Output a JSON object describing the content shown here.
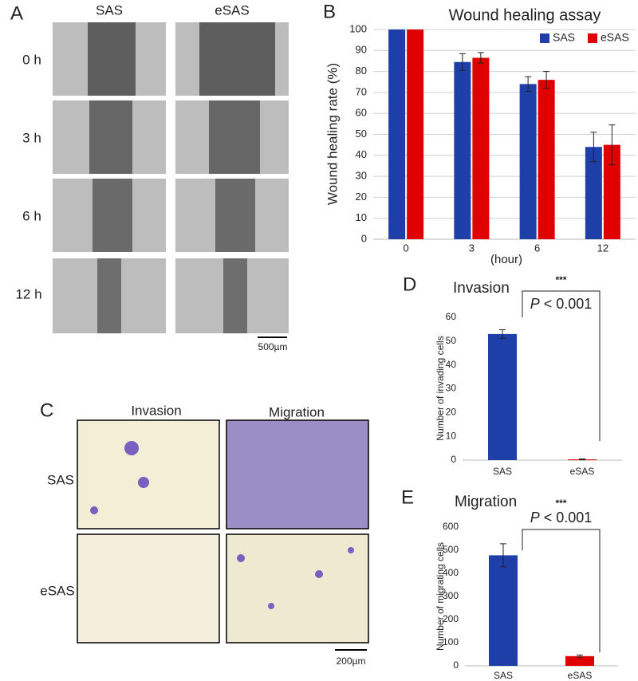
{
  "panel_a": {
    "label": "A",
    "columns": [
      "SAS",
      "eSAS"
    ],
    "rows": [
      "0 h",
      "3 h",
      "6 h",
      "12 h"
    ],
    "scale_bar": "500µm"
  },
  "panel_c": {
    "label": "C",
    "columns": [
      "Invasion",
      "Migration"
    ],
    "rows": [
      "SAS",
      "eSAS"
    ],
    "scale_bar": "200µm"
  },
  "chart_data": [
    {
      "type": "bar",
      "panel_label": "B",
      "title": "Wound healing assay",
      "x_label": "(hour)",
      "y_label": "Wound healing rate (%)",
      "categories": [
        "0",
        "3",
        "6",
        "12"
      ],
      "series": [
        {
          "name": "SAS",
          "color": "#1f3fa8",
          "values": [
            100,
            84.5,
            74,
            44
          ],
          "errors": [
            0,
            4,
            3.5,
            7
          ]
        },
        {
          "name": "eSAS",
          "color": "#e00000",
          "values": [
            100,
            86.5,
            76,
            45
          ],
          "errors": [
            0,
            2.5,
            4,
            9.5
          ]
        }
      ],
      "ylim": [
        0,
        100
      ],
      "yticks": [
        0,
        10,
        20,
        30,
        40,
        50,
        60,
        70,
        80,
        90,
        100
      ],
      "grid": true,
      "legend": "upper right"
    },
    {
      "type": "bar",
      "panel_label": "D",
      "title": "Invasion",
      "y_label": "Number of invading cells",
      "categories": [
        "SAS",
        "eSAS"
      ],
      "values": [
        53,
        0.3
      ],
      "errors": [
        1.8,
        0.2
      ],
      "colors": [
        "#1f3fa8",
        "#e00000"
      ],
      "ylim": [
        0,
        60
      ],
      "yticks": [
        0,
        10,
        20,
        30,
        40,
        50,
        60
      ],
      "grid": false,
      "significance": "***",
      "p_label": "P",
      "p_text": "< 0.001"
    },
    {
      "type": "bar",
      "panel_label": "E",
      "title": "Migration",
      "y_label": "Number of migrating cells",
      "categories": [
        "SAS",
        "eSAS"
      ],
      "values": [
        478,
        42
      ],
      "errors": [
        50,
        5
      ],
      "colors": [
        "#1f3fa8",
        "#e00000"
      ],
      "ylim": [
        0,
        600
      ],
      "yticks": [
        0,
        100,
        200,
        300,
        400,
        500,
        600
      ],
      "grid": false,
      "significance": "***",
      "p_label": "P",
      "p_text": "< 0.001"
    }
  ]
}
